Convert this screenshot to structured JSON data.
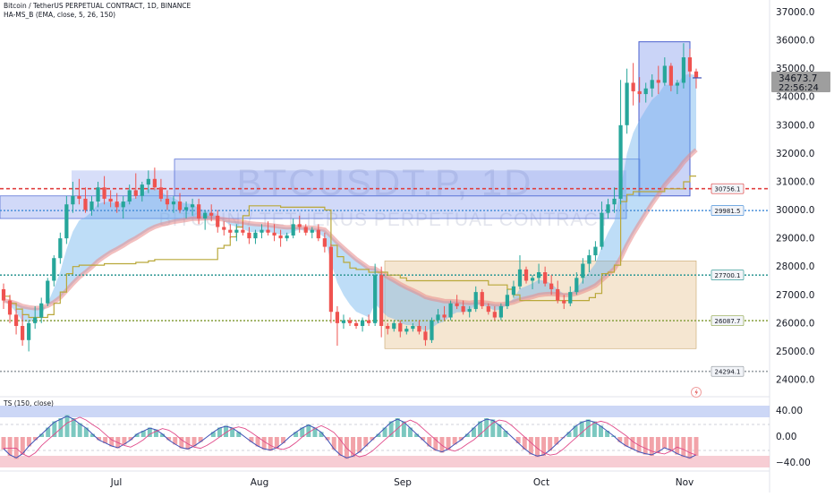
{
  "header": {
    "title": "Bitcoin / TetherUS PERPETUAL CONTRACT, 1D, BINANCE",
    "indicator": "HA-MS_B (EMA, close, 5, 26, 150)",
    "oscillator": "TS (150, close)"
  },
  "watermark": {
    "symbol": "BTCUSDT.P, 1D",
    "name": "BITCOIN / TETHERUS PERPETUAL CONTRACT"
  },
  "price_label": {
    "price": "34673.7",
    "countdown": "22:56:24"
  },
  "chart_data": [
    {
      "type": "candlestick",
      "title": "Bitcoin / TetherUS PERPETUAL CONTRACT, 1D, BINANCE",
      "x_tick_labels": [
        "Jul",
        "Aug",
        "Sep",
        "Oct",
        "Nov"
      ],
      "y_tick_labels": [
        "24000.0",
        "25000.0",
        "26000.0",
        "27000.0",
        "28000.0",
        "29000.0",
        "30000.0",
        "31000.0",
        "32000.0",
        "33000.0",
        "34000.0",
        "35000.0",
        "36000.0",
        "37000.0"
      ],
      "ylim": [
        23600,
        37300
      ],
      "last_price": 34673.7,
      "level_labels": [
        30756.1,
        29981.5,
        27700.1,
        26087.7,
        24294.1
      ],
      "levels": [
        {
          "value": 30756.1,
          "color": "#e04040",
          "style": "dashed-red"
        },
        {
          "value": 29981.5,
          "color": "#4a90d9",
          "style": "dotted-blue"
        },
        {
          "value": 27700.1,
          "color": "#3a9d9a",
          "style": "dotted-teal"
        },
        {
          "value": 26087.7,
          "color": "#8ea54a",
          "style": "dotted-olive"
        },
        {
          "value": 24294.1,
          "color": "#9aa0a6",
          "style": "dotted-gray"
        }
      ],
      "ohlc_approx": [
        [
          27200,
          27400,
          26500,
          26800
        ],
        [
          26800,
          27000,
          26000,
          26300
        ],
        [
          26300,
          26500,
          25600,
          25900
        ],
        [
          25900,
          26300,
          25200,
          25400
        ],
        [
          25400,
          26100,
          25000,
          26000
        ],
        [
          26000,
          26600,
          25800,
          26200
        ],
        [
          26200,
          26900,
          26000,
          26700
        ],
        [
          26700,
          27600,
          26600,
          27500
        ],
        [
          27500,
          28400,
          27300,
          28300
        ],
        [
          28300,
          29200,
          28100,
          29000
        ],
        [
          29000,
          30500,
          28800,
          30200
        ],
        [
          30200,
          31000,
          29900,
          30500
        ],
        [
          30500,
          31100,
          30200,
          30400
        ],
        [
          30400,
          30800,
          29900,
          30000
        ],
        [
          30000,
          30500,
          29800,
          30300
        ],
        [
          30300,
          31000,
          30100,
          30800
        ],
        [
          30800,
          31200,
          30200,
          30400
        ],
        [
          30400,
          30700,
          30100,
          30300
        ],
        [
          30300,
          30600,
          29900,
          30100
        ],
        [
          30100,
          30500,
          29700,
          30300
        ],
        [
          30300,
          30900,
          30200,
          30700
        ],
        [
          30700,
          31300,
          30400,
          30500
        ],
        [
          30500,
          31000,
          30300,
          30900
        ],
        [
          30900,
          31400,
          30600,
          31100
        ],
        [
          31100,
          31500,
          30700,
          30800
        ],
        [
          30800,
          31100,
          30300,
          30400
        ],
        [
          30400,
          30700,
          30000,
          30200
        ],
        [
          30200,
          30500,
          29900,
          30300
        ],
        [
          30300,
          30600,
          29900,
          30000
        ],
        [
          30000,
          30300,
          29700,
          30100
        ],
        [
          30100,
          30400,
          29800,
          30200
        ],
        [
          30200,
          30400,
          29500,
          29700
        ],
        [
          29700,
          30000,
          29300,
          29900
        ],
        [
          29900,
          30200,
          29600,
          29800
        ],
        [
          29800,
          30000,
          29200,
          29400
        ],
        [
          29400,
          29600,
          29100,
          29300
        ],
        [
          29300,
          29500,
          29000,
          29200
        ],
        [
          29200,
          29500,
          28900,
          29300
        ],
        [
          29300,
          29600,
          29100,
          29200
        ],
        [
          29200,
          29400,
          28800,
          29000
        ],
        [
          29000,
          29300,
          28800,
          29200
        ],
        [
          29200,
          29500,
          29000,
          29300
        ],
        [
          29300,
          29600,
          29100,
          29200
        ],
        [
          29200,
          29500,
          28900,
          29100
        ],
        [
          29100,
          29300,
          28700,
          29000
        ],
        [
          29000,
          29200,
          28900,
          29100
        ],
        [
          29100,
          29700,
          29000,
          29500
        ],
        [
          29500,
          29800,
          29200,
          29400
        ],
        [
          29400,
          29500,
          29100,
          29200
        ],
        [
          29200,
          29400,
          29000,
          29300
        ],
        [
          29300,
          29500,
          28900,
          29000
        ],
        [
          29000,
          29200,
          28500,
          28700
        ],
        [
          28700,
          28800,
          26000,
          26400
        ],
        [
          26400,
          26600,
          25200,
          26000
        ],
        [
          26000,
          26300,
          25800,
          26100
        ],
        [
          26100,
          26200,
          25900,
          26000
        ],
        [
          26000,
          26100,
          25800,
          25900
        ],
        [
          25900,
          26200,
          25700,
          26100
        ],
        [
          26100,
          26300,
          25900,
          26000
        ],
        [
          26000,
          28100,
          25900,
          27700
        ],
        [
          27700,
          28000,
          25500,
          25900
        ],
        [
          25900,
          26000,
          25600,
          25800
        ],
        [
          25800,
          26100,
          25700,
          26000
        ],
        [
          26000,
          26100,
          25500,
          25700
        ],
        [
          25700,
          25900,
          25600,
          25800
        ],
        [
          25800,
          26000,
          25700,
          25900
        ],
        [
          25900,
          26100,
          25600,
          25700
        ],
        [
          25700,
          25900,
          25200,
          25400
        ],
        [
          25400,
          26200,
          25300,
          26100
        ],
        [
          26100,
          26500,
          26000,
          26300
        ],
        [
          26300,
          26600,
          26100,
          26200
        ],
        [
          26200,
          26800,
          26100,
          26700
        ],
        [
          26700,
          27000,
          26500,
          26600
        ],
        [
          26600,
          26800,
          26300,
          26400
        ],
        [
          26400,
          26600,
          26200,
          26500
        ],
        [
          26500,
          27300,
          26400,
          27100
        ],
        [
          27100,
          27200,
          26500,
          26600
        ],
        [
          26600,
          26700,
          26300,
          26400
        ],
        [
          26400,
          26600,
          26100,
          26200
        ],
        [
          26200,
          26700,
          26100,
          26600
        ],
        [
          26600,
          27200,
          26500,
          27000
        ],
        [
          27000,
          27500,
          26900,
          27300
        ],
        [
          27300,
          28400,
          27200,
          27900
        ],
        [
          27900,
          28000,
          27400,
          27500
        ],
        [
          27500,
          27700,
          27200,
          27600
        ],
        [
          27600,
          28100,
          27400,
          27800
        ],
        [
          27800,
          28000,
          27300,
          27400
        ],
        [
          27400,
          27700,
          27000,
          27200
        ],
        [
          27200,
          27500,
          26700,
          26800
        ],
        [
          26800,
          27000,
          26500,
          26700
        ],
        [
          26700,
          27300,
          26600,
          27100
        ],
        [
          27100,
          27800,
          27000,
          27600
        ],
        [
          27600,
          28300,
          27400,
          28100
        ],
        [
          28100,
          28600,
          27800,
          28400
        ],
        [
          28400,
          28900,
          28200,
          28700
        ],
        [
          28700,
          30300,
          28600,
          29900
        ],
        [
          29900,
          30400,
          29700,
          30200
        ],
        [
          30200,
          30800,
          29900,
          30400
        ],
        [
          30400,
          34600,
          30200,
          33000
        ],
        [
          33000,
          35000,
          32700,
          34500
        ],
        [
          34500,
          35200,
          33700,
          34200
        ],
        [
          34200,
          34700,
          33800,
          34100
        ],
        [
          34100,
          34500,
          33800,
          34300
        ],
        [
          34300,
          34800,
          34000,
          34600
        ],
        [
          34600,
          35100,
          34100,
          34500
        ],
        [
          34500,
          35400,
          34400,
          35100
        ],
        [
          35100,
          35200,
          34200,
          34400
        ],
        [
          34400,
          34600,
          34100,
          34500
        ],
        [
          34500,
          35900,
          34300,
          35400
        ],
        [
          35400,
          35700,
          34700,
          34900
        ],
        [
          34900,
          35000,
          34300,
          34673.7
        ]
      ],
      "grid": false
    },
    {
      "type": "histogram",
      "title": "TS (150, close)",
      "y_tick_labels": [
        "40.00",
        "0.00",
        "−40.00"
      ],
      "ylim": [
        -55,
        55
      ],
      "values": [
        -20,
        -30,
        -35,
        -28,
        -15,
        -5,
        5,
        15,
        25,
        30,
        35,
        30,
        22,
        15,
        5,
        -5,
        -10,
        -15,
        -18,
        -12,
        -5,
        5,
        10,
        15,
        12,
        5,
        -5,
        -12,
        -18,
        -20,
        -15,
        -8,
        0,
        8,
        15,
        18,
        15,
        8,
        0,
        -8,
        -15,
        -20,
        -22,
        -18,
        -10,
        0,
        8,
        15,
        20,
        15,
        8,
        -5,
        -20,
        -30,
        -35,
        -32,
        -25,
        -15,
        -5,
        5,
        15,
        25,
        30,
        25,
        15,
        5,
        -5,
        -15,
        -22,
        -25,
        -20,
        -12,
        -5,
        5,
        15,
        25,
        30,
        28,
        20,
        10,
        0,
        -10,
        -20,
        -28,
        -32,
        -30,
        -22,
        -12,
        -2,
        8,
        18,
        25,
        28,
        25,
        18,
        10,
        2,
        -8,
        -15,
        -20,
        -25,
        -28,
        -30,
        -25,
        -18,
        -22,
        -28,
        -32,
        -35,
        -30
      ],
      "grid": false
    }
  ]
}
